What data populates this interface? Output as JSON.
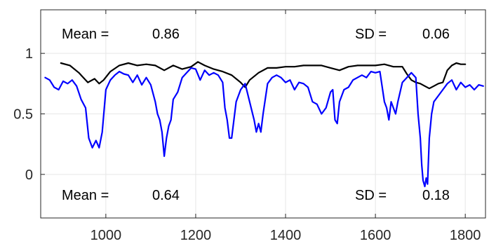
{
  "chart_data": {
    "type": "line",
    "title": "",
    "xlabel": "",
    "ylabel": "",
    "xlim": [
      855,
      1845
    ],
    "ylim": [
      -0.36,
      1.36
    ],
    "grid": true,
    "x_ticks": [
      1000,
      1200,
      1400,
      1600,
      1800
    ],
    "x_tick_labels": [
      "1000",
      "1200",
      "1400",
      "1600",
      "1800"
    ],
    "y_ticks": [
      0,
      0.5,
      1
    ],
    "y_tick_labels": [
      "0",
      "0.5",
      "1"
    ],
    "series": [
      {
        "color": "#000000",
        "x": [
          900,
          920,
          940,
          950,
          960,
          975,
          985,
          995,
          1010,
          1030,
          1050,
          1070,
          1090,
          1110,
          1130,
          1150,
          1170,
          1190,
          1205,
          1220,
          1240,
          1260,
          1280,
          1300,
          1310,
          1320,
          1340,
          1360,
          1380,
          1400,
          1420,
          1440,
          1460,
          1480,
          1500,
          1520,
          1540,
          1560,
          1580,
          1600,
          1620,
          1640,
          1660,
          1670,
          1680,
          1690,
          1700,
          1710,
          1720,
          1730,
          1740,
          1750,
          1760,
          1770,
          1780,
          1790,
          1800
        ],
        "y": [
          0.92,
          0.9,
          0.84,
          0.8,
          0.76,
          0.79,
          0.75,
          0.78,
          0.85,
          0.9,
          0.92,
          0.9,
          0.91,
          0.9,
          0.86,
          0.9,
          0.87,
          0.89,
          0.93,
          0.9,
          0.87,
          0.85,
          0.82,
          0.76,
          0.72,
          0.78,
          0.84,
          0.88,
          0.88,
          0.89,
          0.89,
          0.9,
          0.9,
          0.9,
          0.88,
          0.86,
          0.89,
          0.9,
          0.9,
          0.9,
          0.91,
          0.89,
          0.89,
          0.83,
          0.78,
          0.76,
          0.75,
          0.73,
          0.71,
          0.73,
          0.75,
          0.76,
          0.86,
          0.9,
          0.92,
          0.91,
          0.91
        ]
      },
      {
        "color": "#0000FF",
        "x": [
          865,
          875,
          885,
          895,
          905,
          915,
          925,
          935,
          945,
          955,
          962,
          970,
          978,
          985,
          992,
          1000,
          1010,
          1020,
          1030,
          1040,
          1050,
          1060,
          1070,
          1080,
          1090,
          1100,
          1110,
          1115,
          1120,
          1125,
          1130,
          1135,
          1140,
          1145,
          1150,
          1160,
          1170,
          1180,
          1190,
          1200,
          1210,
          1220,
          1230,
          1240,
          1250,
          1260,
          1265,
          1270,
          1275,
          1280,
          1285,
          1290,
          1300,
          1310,
          1320,
          1330,
          1335,
          1340,
          1345,
          1350,
          1360,
          1370,
          1380,
          1390,
          1400,
          1410,
          1420,
          1430,
          1440,
          1450,
          1460,
          1470,
          1480,
          1490,
          1500,
          1505,
          1510,
          1515,
          1520,
          1530,
          1540,
          1550,
          1560,
          1570,
          1580,
          1590,
          1600,
          1610,
          1620,
          1625,
          1630,
          1635,
          1640,
          1645,
          1650,
          1660,
          1670,
          1680,
          1690,
          1695,
          1700,
          1703,
          1706,
          1710,
          1713,
          1716,
          1720,
          1725,
          1730,
          1740,
          1750,
          1760,
          1770,
          1780,
          1790,
          1800,
          1810,
          1820,
          1830,
          1840
        ],
        "y": [
          0.8,
          0.78,
          0.72,
          0.7,
          0.77,
          0.75,
          0.78,
          0.73,
          0.62,
          0.55,
          0.3,
          0.22,
          0.28,
          0.22,
          0.35,
          0.7,
          0.78,
          0.82,
          0.85,
          0.83,
          0.82,
          0.76,
          0.82,
          0.74,
          0.8,
          0.74,
          0.6,
          0.5,
          0.45,
          0.35,
          0.15,
          0.3,
          0.4,
          0.45,
          0.62,
          0.68,
          0.8,
          0.84,
          0.88,
          0.87,
          0.78,
          0.86,
          0.82,
          0.84,
          0.82,
          0.76,
          0.55,
          0.45,
          0.3,
          0.3,
          0.45,
          0.6,
          0.7,
          0.75,
          0.6,
          0.45,
          0.35,
          0.42,
          0.35,
          0.5,
          0.75,
          0.8,
          0.82,
          0.8,
          0.76,
          0.78,
          0.7,
          0.76,
          0.75,
          0.72,
          0.6,
          0.58,
          0.5,
          0.55,
          0.68,
          0.7,
          0.45,
          0.42,
          0.6,
          0.7,
          0.72,
          0.78,
          0.8,
          0.82,
          0.8,
          0.85,
          0.84,
          0.85,
          0.6,
          0.55,
          0.45,
          0.6,
          0.55,
          0.5,
          0.6,
          0.76,
          0.8,
          0.84,
          0.8,
          0.5,
          0.3,
          0.08,
          -0.05,
          -0.1,
          -0.03,
          -0.08,
          0.3,
          0.5,
          0.6,
          0.65,
          0.7,
          0.75,
          0.78,
          0.7,
          0.76,
          0.72,
          0.74,
          0.7,
          0.74,
          0.73
        ]
      }
    ],
    "annotations": {
      "top_mean_label": "Mean =",
      "top_mean_value": "0.86",
      "top_sd_label": "SD =",
      "top_sd_value": "0.06",
      "bottom_mean_label": "Mean =",
      "bottom_mean_value": "0.64",
      "bottom_sd_label": "SD =",
      "bottom_sd_value": "0.18"
    }
  }
}
